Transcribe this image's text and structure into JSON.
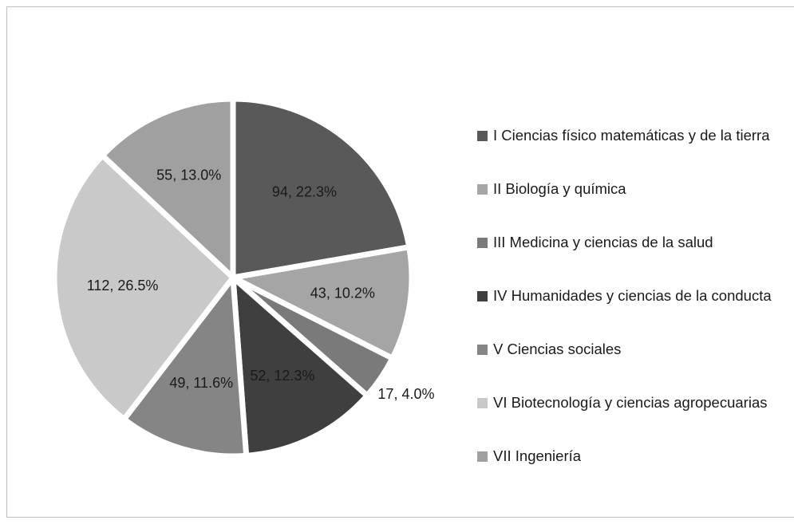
{
  "chart_data": {
    "type": "pie",
    "categories": [
      "I Ciencias físico matemáticas  y de la tierra",
      "II Biología y química",
      "III Medicina y ciencias de la salud",
      "IV Humanidades y ciencias de la conducta",
      "V Ciencias sociales",
      "VI Biotecnología y ciencias agropecuarias",
      "VII Ingeniería"
    ],
    "values": [
      94,
      43,
      17,
      52,
      49,
      112,
      55
    ],
    "value_labels": [
      "94, 22.3%",
      "43, 10.2%",
      "17, 4.0%",
      "52, 12.3%",
      "49, 11.6%",
      "112, 26.5%",
      "55, 13.0%"
    ],
    "colors": [
      "#595959",
      "#a5a5a5",
      "#7a7a7a",
      "#3f3f3f",
      "#858585",
      "#c9c9c9",
      "#a0a0a0"
    ],
    "legend": "right"
  }
}
